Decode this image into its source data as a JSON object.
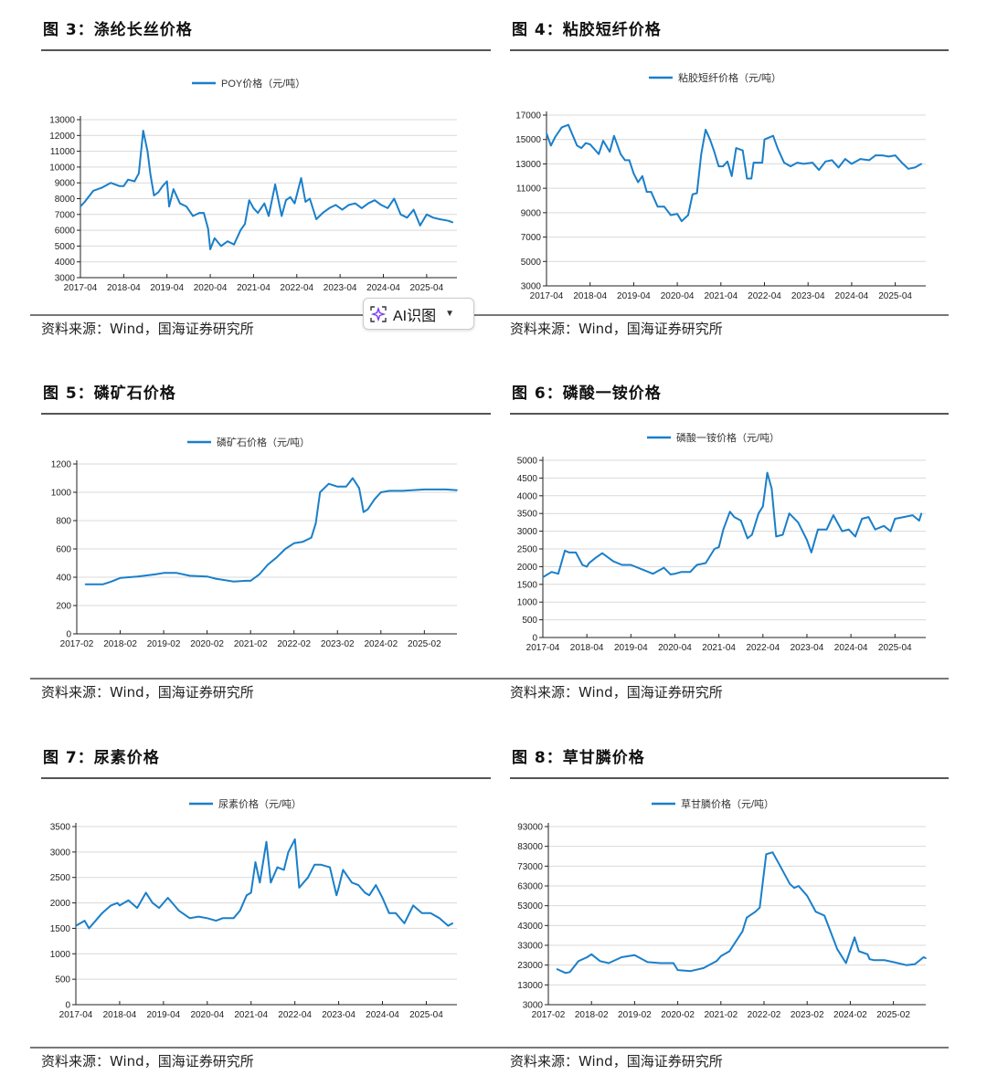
{
  "ai_button": {
    "label": "AI识图",
    "icon": "sparkle-scan-icon",
    "chevron": "chevron-down-icon"
  },
  "source_text": "资料来源：Wind，国海证券研究所",
  "colors": {
    "line": "#1a7fc9",
    "grid": "#d9d9d9",
    "axis": "#222222"
  },
  "chart_data": [
    {
      "id": "fig3",
      "title": "图 3：涤纶长丝价格",
      "type": "line",
      "legend": "POY价格（元/吨）",
      "xlabel": "",
      "ylabel": "",
      "x_ticks": [
        "2017-04",
        "2018-04",
        "2019-04",
        "2020-04",
        "2021-04",
        "2022-04",
        "2023-04",
        "2024-04",
        "2025-04"
      ],
      "x_range": [
        "2017-04",
        "2025-12"
      ],
      "y_ticks": [
        3000,
        4000,
        5000,
        6000,
        7000,
        8000,
        9000,
        10000,
        11000,
        12000,
        13000
      ],
      "ylim": [
        3000,
        13000
      ],
      "grid": true,
      "x": [
        0,
        0.1,
        0.3,
        0.5,
        0.7,
        0.9,
        1.0,
        1.1,
        1.25,
        1.35,
        1.45,
        1.55,
        1.62,
        1.7,
        1.8,
        1.9,
        2.0,
        2.05,
        2.15,
        2.3,
        2.45,
        2.6,
        2.75,
        2.85,
        2.95,
        3.0,
        3.1,
        3.25,
        3.4,
        3.55,
        3.7,
        3.8,
        3.9,
        4.0,
        4.1,
        4.25,
        4.35,
        4.5,
        4.65,
        4.75,
        4.85,
        4.95,
        5.1,
        5.2,
        5.3,
        5.45,
        5.6,
        5.75,
        5.9,
        6.05,
        6.2,
        6.35,
        6.5,
        6.65,
        6.8,
        6.95,
        7.1,
        7.25,
        7.4,
        7.55,
        7.7,
        7.85,
        8.0,
        8.15,
        8.3,
        8.5,
        8.6
      ],
      "values": [
        7500,
        7800,
        8500,
        8700,
        9000,
        8800,
        8800,
        9200,
        9100,
        9600,
        12300,
        11000,
        9500,
        8200,
        8400,
        8800,
        9100,
        7500,
        8600,
        7700,
        7500,
        6900,
        7100,
        7100,
        6100,
        4800,
        5500,
        5000,
        5300,
        5100,
        6000,
        6400,
        7900,
        7400,
        7100,
        7700,
        6900,
        8900,
        6900,
        7900,
        8100,
        7700,
        9300,
        7800,
        8000,
        6700,
        7100,
        7400,
        7600,
        7300,
        7600,
        7700,
        7400,
        7700,
        7900,
        7600,
        7400,
        8000,
        7000,
        6800,
        7300,
        6300,
        7000,
        6800,
        6700,
        6600,
        6500
      ]
    },
    {
      "id": "fig4",
      "title": "图 4：粘胶短纤价格",
      "type": "line",
      "legend": "粘胶短纤价格（元/吨）",
      "xlabel": "",
      "ylabel": "",
      "x_ticks": [
        "2017-04",
        "2018-04",
        "2019-04",
        "2020-04",
        "2021-04",
        "2022-04",
        "2023-04",
        "2024-04",
        "2025-04"
      ],
      "x_range": [
        "2017-04",
        "2025-12"
      ],
      "y_ticks": [
        3000,
        5000,
        7000,
        9000,
        11000,
        13000,
        15000,
        17000
      ],
      "ylim": [
        3000,
        17000
      ],
      "grid": true,
      "x": [
        0,
        0.1,
        0.2,
        0.35,
        0.5,
        0.7,
        0.8,
        0.9,
        1.0,
        1.2,
        1.3,
        1.45,
        1.55,
        1.7,
        1.8,
        1.9,
        2.0,
        2.1,
        2.2,
        2.3,
        2.4,
        2.55,
        2.7,
        2.85,
        3.0,
        3.1,
        3.25,
        3.35,
        3.45,
        3.55,
        3.65,
        3.75,
        3.85,
        3.95,
        4.05,
        4.15,
        4.25,
        4.35,
        4.5,
        4.6,
        4.7,
        4.75,
        4.8,
        4.95,
        5.0,
        5.2,
        5.3,
        5.4,
        5.45,
        5.6,
        5.75,
        5.9,
        6.1,
        6.25,
        6.4,
        6.55,
        6.7,
        6.85,
        7.0,
        7.2,
        7.4,
        7.55,
        7.7,
        7.85,
        8.0,
        8.15,
        8.3,
        8.45,
        8.6
      ],
      "values": [
        15500,
        14500,
        15200,
        16000,
        16200,
        14500,
        14300,
        14700,
        14600,
        13800,
        14900,
        14000,
        15300,
        13800,
        13300,
        13300,
        12200,
        11500,
        12000,
        10700,
        10700,
        9500,
        9500,
        8800,
        8900,
        8300,
        8800,
        10500,
        10600,
        13800,
        15800,
        15000,
        14000,
        12800,
        12800,
        13200,
        12000,
        14300,
        14100,
        11800,
        11800,
        13100,
        13100,
        13100,
        15000,
        15300,
        14300,
        13500,
        13100,
        12800,
        13100,
        13000,
        13100,
        12500,
        13200,
        13300,
        12700,
        13400,
        13000,
        13400,
        13300,
        13700,
        13700,
        13600,
        13700,
        13100,
        12600,
        12700,
        13000
      ]
    },
    {
      "id": "fig5",
      "title": "图 5：磷矿石价格",
      "type": "line",
      "legend": "磷矿石价格（元/吨）",
      "xlabel": "",
      "ylabel": "",
      "x_ticks": [
        "2017-02",
        "2018-02",
        "2019-02",
        "2020-02",
        "2021-02",
        "2022-02",
        "2023-02",
        "2024-02",
        "2025-02"
      ],
      "x_range": [
        "2017-02",
        "2025-11"
      ],
      "y_ticks": [
        0,
        200,
        400,
        600,
        800,
        1000,
        1200
      ],
      "ylim": [
        0,
        1200
      ],
      "grid": true,
      "x": [
        0.2,
        0.6,
        0.8,
        1.0,
        1.4,
        1.8,
        2.0,
        2.3,
        2.6,
        3.0,
        3.2,
        3.6,
        3.9,
        4.0,
        4.2,
        4.4,
        4.6,
        4.8,
        5.0,
        5.2,
        5.4,
        5.5,
        5.6,
        5.8,
        6.0,
        6.05,
        6.2,
        6.35,
        6.5,
        6.6,
        6.7,
        6.85,
        7.0,
        7.2,
        7.5,
        8.0,
        8.5,
        8.75
      ],
      "values": [
        350,
        350,
        370,
        395,
        405,
        420,
        430,
        430,
        410,
        405,
        390,
        370,
        375,
        375,
        420,
        490,
        540,
        600,
        640,
        650,
        680,
        780,
        1000,
        1060,
        1040,
        1040,
        1040,
        1100,
        1030,
        860,
        880,
        950,
        1000,
        1010,
        1010,
        1020,
        1020,
        1015
      ]
    },
    {
      "id": "fig6",
      "title": "图 6：磷酸一铵价格",
      "type": "line",
      "legend": "磷酸一铵价格（元/吨）",
      "xlabel": "",
      "ylabel": "",
      "x_ticks": [
        "2017-04",
        "2018-04",
        "2019-04",
        "2020-04",
        "2021-04",
        "2022-04",
        "2023-04",
        "2024-04",
        "2025-04"
      ],
      "x_range": [
        "2017-04",
        "2025-12"
      ],
      "y_ticks": [
        0,
        500,
        1000,
        1500,
        2000,
        2500,
        3000,
        3500,
        4000,
        4500,
        5000
      ],
      "ylim": [
        0,
        5000
      ],
      "grid": true,
      "x": [
        0,
        0.2,
        0.35,
        0.5,
        0.6,
        0.75,
        0.9,
        1.0,
        1.05,
        1.2,
        1.35,
        1.6,
        1.8,
        2.0,
        2.3,
        2.5,
        2.75,
        2.9,
        3.0,
        3.15,
        3.35,
        3.5,
        3.7,
        3.9,
        4.0,
        4.1,
        4.25,
        4.35,
        4.5,
        4.65,
        4.75,
        4.9,
        5.0,
        5.1,
        5.2,
        5.3,
        5.45,
        5.6,
        5.8,
        6.0,
        6.1,
        6.25,
        6.45,
        6.6,
        6.8,
        6.95,
        7.1,
        7.25,
        7.4,
        7.55,
        7.75,
        7.9,
        8.0,
        8.2,
        8.4,
        8.55,
        8.6
      ],
      "values": [
        1700,
        1850,
        1800,
        2450,
        2400,
        2400,
        2050,
        2000,
        2100,
        2250,
        2380,
        2150,
        2050,
        2050,
        1900,
        1800,
        1970,
        1780,
        1800,
        1850,
        1850,
        2050,
        2100,
        2500,
        2550,
        3050,
        3550,
        3400,
        3300,
        2800,
        2900,
        3500,
        3700,
        4650,
        4200,
        2850,
        2900,
        3500,
        3250,
        2750,
        2400,
        3050,
        3050,
        3450,
        3000,
        3050,
        2850,
        3350,
        3400,
        3050,
        3150,
        3000,
        3350,
        3400,
        3450,
        3300,
        3500
      ]
    },
    {
      "id": "fig7",
      "title": "图 7：尿素价格",
      "type": "line",
      "legend": "尿素价格（元/吨）",
      "xlabel": "",
      "ylabel": "",
      "x_ticks": [
        "2017-04",
        "2018-04",
        "2019-04",
        "2020-04",
        "2021-04",
        "2022-04",
        "2023-04",
        "2024-04",
        "2025-04"
      ],
      "x_range": [
        "2017-04",
        "2025-12"
      ],
      "y_ticks": [
        0,
        500,
        1000,
        1500,
        2000,
        2500,
        3000,
        3500
      ],
      "ylim": [
        0,
        3500
      ],
      "grid": true,
      "x": [
        0,
        0.2,
        0.3,
        0.5,
        0.6,
        0.8,
        0.95,
        1.0,
        1.2,
        1.4,
        1.6,
        1.75,
        1.9,
        2.1,
        2.35,
        2.6,
        2.8,
        3.0,
        3.2,
        3.35,
        3.6,
        3.75,
        3.9,
        4.0,
        4.1,
        4.2,
        4.35,
        4.45,
        4.6,
        4.75,
        4.85,
        5.0,
        5.1,
        5.3,
        5.45,
        5.6,
        5.8,
        5.95,
        6.0,
        6.1,
        6.3,
        6.45,
        6.6,
        6.7,
        6.85,
        7.0,
        7.15,
        7.3,
        7.5,
        7.7,
        7.9,
        8.1,
        8.3,
        8.5,
        8.6
      ],
      "values": [
        1550,
        1650,
        1500,
        1700,
        1800,
        1950,
        2000,
        1950,
        2050,
        1900,
        2200,
        2000,
        1900,
        2100,
        1850,
        1700,
        1730,
        1700,
        1650,
        1700,
        1700,
        1850,
        2150,
        2200,
        2800,
        2400,
        3200,
        2400,
        2700,
        2650,
        3000,
        3250,
        2300,
        2500,
        2750,
        2750,
        2700,
        2150,
        2300,
        2650,
        2400,
        2350,
        2200,
        2150,
        2350,
        2100,
        1800,
        1800,
        1600,
        1950,
        1800,
        1800,
        1700,
        1550,
        1600
      ]
    },
    {
      "id": "fig8",
      "title": "图 8：草甘膦价格",
      "type": "line",
      "legend": "草甘膦价格（元/吨）",
      "xlabel": "",
      "ylabel": "",
      "x_ticks": [
        "2017-02",
        "2018-02",
        "2019-02",
        "2020-02",
        "2021-02",
        "2022-02",
        "2023-02",
        "2024-02",
        "2025-02"
      ],
      "x_range": [
        "2017-02",
        "2025-11"
      ],
      "y_ticks": [
        3000,
        13000,
        23000,
        33000,
        43000,
        53000,
        63000,
        73000,
        83000,
        93000
      ],
      "ylim": [
        3000,
        93000
      ],
      "grid": true,
      "x": [
        0.2,
        0.4,
        0.5,
        0.7,
        0.9,
        1.0,
        1.2,
        1.4,
        1.7,
        2.0,
        2.3,
        2.6,
        2.9,
        3.0,
        3.3,
        3.6,
        3.9,
        4.0,
        4.2,
        4.5,
        4.6,
        4.8,
        4.9,
        5.05,
        5.2,
        5.3,
        5.6,
        5.7,
        5.8,
        6.0,
        6.2,
        6.4,
        6.7,
        6.9,
        7.1,
        7.2,
        7.4,
        7.45,
        7.55,
        7.8,
        8.0,
        8.3,
        8.5,
        8.7,
        8.75
      ],
      "values": [
        21000,
        19000,
        19500,
        25000,
        27000,
        28500,
        25000,
        24000,
        27000,
        28000,
        24500,
        24000,
        24000,
        20500,
        20000,
        21500,
        25000,
        27500,
        30000,
        40000,
        47000,
        50000,
        52000,
        79000,
        80000,
        76000,
        64000,
        62000,
        63000,
        58000,
        50000,
        48000,
        31000,
        24000,
        37000,
        30000,
        28500,
        26000,
        25500,
        25500,
        24500,
        23000,
        23500,
        27000,
        26500
      ]
    }
  ]
}
